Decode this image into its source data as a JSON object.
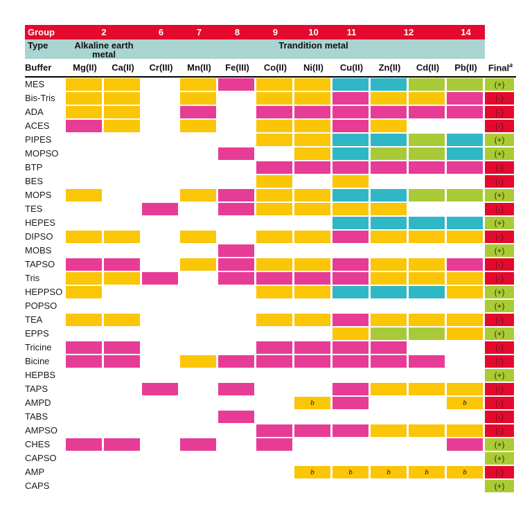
{
  "chart_data": {
    "type": "heatmap",
    "title": "",
    "group_row": {
      "label": "Group",
      "cells": [
        {
          "text": "2",
          "span": 2
        },
        {
          "text": "6",
          "span": 1
        },
        {
          "text": "7",
          "span": 1
        },
        {
          "text": "8",
          "span": 1
        },
        {
          "text": "9",
          "span": 1
        },
        {
          "text": "10",
          "span": 1
        },
        {
          "text": "11",
          "span": 1
        },
        {
          "text": "12",
          "span": 2
        },
        {
          "text": "14",
          "span": 1
        }
      ]
    },
    "type_row": {
      "label": "Type",
      "cells": [
        {
          "text": "Alkaline earth metal",
          "span": 2
        },
        {
          "text": "Trandition metal",
          "span": 9
        }
      ]
    },
    "buffer_header": "Buffer",
    "columns": [
      "Mg(II)",
      "Ca(II)",
      "Cr(III)",
      "Mn(II)",
      "Fe(III)",
      "Co(II)",
      "Ni(II)",
      "Cu(II)",
      "Zn(II)",
      "Cd(II)",
      "Pb(II)"
    ],
    "final_header": {
      "text": "Final",
      "superscript": "a"
    },
    "cell_footnote_marker": "b",
    "cell_code_legend": {
      "Y": "yellow",
      "M": "magenta",
      "T": "teal",
      "G": "green",
      "Yb": "yellow with footnote b",
      "": "empty (white)"
    },
    "color_legend": {
      "yellow": "#FBC508",
      "magenta": "#E73C96",
      "teal": "#30B7C6",
      "green": "#A9CA38",
      "final_plus": "#ABCB35",
      "final_minus": "#E30A2E",
      "band_red": "#E30A2E",
      "band_teal": "#A9D4D0"
    },
    "rows": [
      {
        "buffer": "MES",
        "cells": [
          "Y",
          "Y",
          "",
          "Y",
          "M",
          "Y",
          "Y",
          "T",
          "T",
          "G",
          "G"
        ],
        "final": "(+)"
      },
      {
        "buffer": "Bis-Tris",
        "cells": [
          "Y",
          "Y",
          "",
          "Y",
          "",
          "Y",
          "Y",
          "M",
          "Y",
          "Y",
          "M"
        ],
        "final": "(-)"
      },
      {
        "buffer": "ADA",
        "cells": [
          "Y",
          "Y",
          "",
          "M",
          "",
          "M",
          "M",
          "M",
          "M",
          "M",
          "M"
        ],
        "final": "(-)"
      },
      {
        "buffer": "ACES",
        "cells": [
          "M",
          "Y",
          "",
          "Y",
          "",
          "Y",
          "Y",
          "M",
          "Y",
          "",
          ""
        ],
        "final": "(-)"
      },
      {
        "buffer": "PIPES",
        "cells": [
          "",
          "",
          "",
          "",
          "",
          "Y",
          "Y",
          "T",
          "T",
          "G",
          "T"
        ],
        "final": "(+)"
      },
      {
        "buffer": "MOPSO",
        "cells": [
          "",
          "",
          "",
          "",
          "M",
          "",
          "Y",
          "T",
          "G",
          "G",
          "T"
        ],
        "final": "(+)"
      },
      {
        "buffer": "BTP",
        "cells": [
          "",
          "",
          "",
          "",
          "",
          "M",
          "M",
          "M",
          "M",
          "M",
          "M"
        ],
        "final": "(-)"
      },
      {
        "buffer": "BES",
        "cells": [
          "",
          "",
          "",
          "",
          "",
          "Y",
          "",
          "Y",
          "",
          "",
          ""
        ],
        "final": "(-)"
      },
      {
        "buffer": "MOPS",
        "cells": [
          "Y",
          "",
          "",
          "Y",
          "M",
          "Y",
          "Y",
          "T",
          "T",
          "G",
          "G"
        ],
        "final": "(+)"
      },
      {
        "buffer": "TES",
        "cells": [
          "",
          "",
          "M",
          "",
          "M",
          "Y",
          "Y",
          "Y",
          "Y",
          "",
          ""
        ],
        "final": "(-)"
      },
      {
        "buffer": "HEPES",
        "cells": [
          "",
          "",
          "",
          "",
          "",
          "",
          "",
          "T",
          "T",
          "T",
          "T"
        ],
        "final": "(+)"
      },
      {
        "buffer": "DIPSO",
        "cells": [
          "Y",
          "Y",
          "",
          "Y",
          "",
          "Y",
          "Y",
          "M",
          "Y",
          "Y",
          "Y"
        ],
        "final": "(-)"
      },
      {
        "buffer": "MOBS",
        "cells": [
          "",
          "",
          "",
          "",
          "M",
          "",
          "",
          "",
          "",
          "",
          ""
        ],
        "final": "(+)"
      },
      {
        "buffer": "TAPSO",
        "cells": [
          "M",
          "M",
          "",
          "Y",
          "M",
          "Y",
          "Y",
          "M",
          "Y",
          "Y",
          "M"
        ],
        "final": "(-)"
      },
      {
        "buffer": "Tris",
        "cells": [
          "Y",
          "Y",
          "M",
          "",
          "M",
          "M",
          "M",
          "M",
          "Y",
          "Y",
          "Y"
        ],
        "final": "(-)"
      },
      {
        "buffer": "HEPPSO",
        "cells": [
          "Y",
          "",
          "",
          "",
          "",
          "Y",
          "Y",
          "T",
          "T",
          "T",
          "Y"
        ],
        "final": "(+)"
      },
      {
        "buffer": "POPSO",
        "cells": [
          "",
          "",
          "",
          "",
          "",
          "",
          "",
          "",
          "",
          "",
          ""
        ],
        "final": "(+)"
      },
      {
        "buffer": "TEA",
        "cells": [
          "Y",
          "Y",
          "",
          "",
          "",
          "Y",
          "Y",
          "M",
          "Y",
          "Y",
          "Y"
        ],
        "final": "(-)"
      },
      {
        "buffer": "EPPS",
        "cells": [
          "",
          "",
          "",
          "",
          "",
          "",
          "",
          "Y",
          "G",
          "G",
          "Y"
        ],
        "final": "(+)"
      },
      {
        "buffer": "Tricine",
        "cells": [
          "M",
          "M",
          "",
          "",
          "",
          "M",
          "M",
          "M",
          "M",
          "",
          ""
        ],
        "final": "(-)"
      },
      {
        "buffer": "Bicine",
        "cells": [
          "M",
          "M",
          "",
          "Y",
          "M",
          "M",
          "M",
          "M",
          "M",
          "M",
          ""
        ],
        "final": "(-)"
      },
      {
        "buffer": "HEPBS",
        "cells": [
          "",
          "",
          "",
          "",
          "",
          "",
          "",
          "",
          "",
          "",
          ""
        ],
        "final": "(+)"
      },
      {
        "buffer": "TAPS",
        "cells": [
          "",
          "",
          "M",
          "",
          "M",
          "",
          "",
          "M",
          "Y",
          "Y",
          "Y"
        ],
        "final": "(-)"
      },
      {
        "buffer": "AMPD",
        "cells": [
          "",
          "",
          "",
          "",
          "",
          "",
          "Yb",
          "M",
          "",
          "",
          "Yb"
        ],
        "final": "(-)"
      },
      {
        "buffer": "TABS",
        "cells": [
          "",
          "",
          "",
          "",
          "M",
          "",
          "",
          "",
          "",
          "",
          ""
        ],
        "final": "(-)"
      },
      {
        "buffer": "AMPSO",
        "cells": [
          "",
          "",
          "",
          "",
          "",
          "M",
          "M",
          "M",
          "Y",
          "Y",
          "Y"
        ],
        "final": "(-)"
      },
      {
        "buffer": "CHES",
        "cells": [
          "M",
          "M",
          "",
          "M",
          "",
          "M",
          "",
          "",
          "",
          "",
          "M"
        ],
        "final": "(+)"
      },
      {
        "buffer": "CAPSO",
        "cells": [
          "",
          "",
          "",
          "",
          "",
          "",
          "",
          "",
          "",
          "",
          ""
        ],
        "final": "(+)"
      },
      {
        "buffer": "AMP",
        "cells": [
          "",
          "",
          "",
          "",
          "",
          "",
          "Yb",
          "Yb",
          "Yb",
          "Yb",
          "Yb"
        ],
        "final": "(-)"
      },
      {
        "buffer": "CAPS",
        "cells": [
          "",
          "",
          "",
          "",
          "",
          "",
          "",
          "",
          "",
          "",
          ""
        ],
        "final": "(+)"
      }
    ]
  }
}
